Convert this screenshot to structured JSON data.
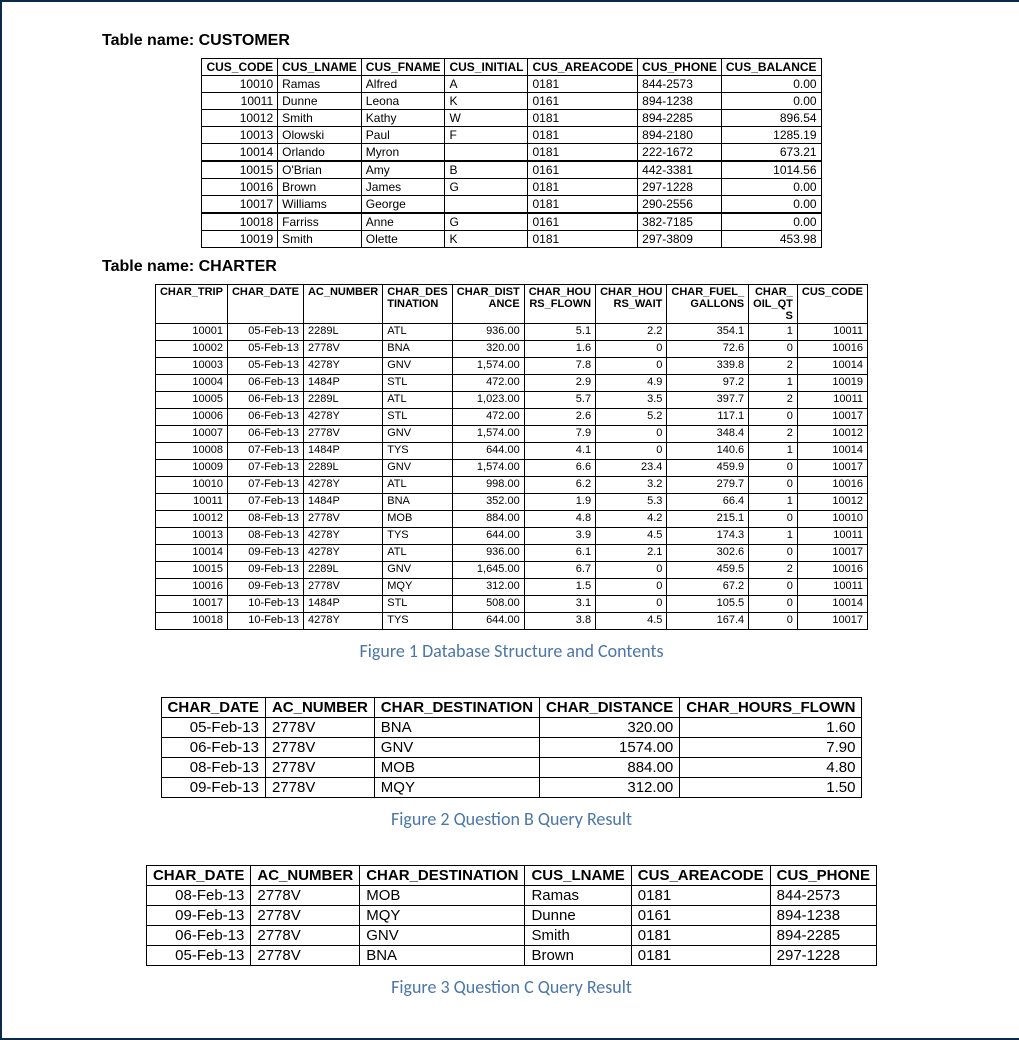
{
  "customer": {
    "title": "Table name: CUSTOMER",
    "columns": [
      "CUS_CODE",
      "CUS_LNAME",
      "CUS_FNAME",
      "CUS_INITIAL",
      "CUS_AREACODE",
      "CUS_PHONE",
      "CUS_BALANCE"
    ],
    "groups": [
      [
        [
          "10010",
          "Ramas",
          "Alfred",
          "A",
          "0181",
          "844-2573",
          "0.00"
        ],
        [
          "10011",
          "Dunne",
          "Leona",
          "K",
          "0161",
          "894-1238",
          "0.00"
        ],
        [
          "10012",
          "Smith",
          "Kathy",
          "W",
          "0181",
          "894-2285",
          "896.54"
        ],
        [
          "10013",
          "Olowski",
          "Paul",
          "F",
          "0181",
          "894-2180",
          "1285.19"
        ],
        [
          "10014",
          "Orlando",
          "Myron",
          "",
          "0181",
          "222-1672",
          "673.21"
        ]
      ],
      [
        [
          "10015",
          "O'Brian",
          "Amy",
          "B",
          "0161",
          "442-3381",
          "1014.56"
        ],
        [
          "10016",
          "Brown",
          "James",
          "G",
          "0181",
          "297-1228",
          "0.00"
        ],
        [
          "10017",
          "Williams",
          "George",
          "",
          "0181",
          "290-2556",
          "0.00"
        ]
      ],
      [
        [
          "10018",
          "Farriss",
          "Anne",
          "G",
          "0161",
          "382-7185",
          "0.00"
        ],
        [
          "10019",
          "Smith",
          "Olette",
          "K",
          "0181",
          "297-3809",
          "453.98"
        ]
      ]
    ],
    "align": [
      "r",
      "l",
      "l",
      "l",
      "l",
      "l",
      "r"
    ]
  },
  "charter": {
    "title": "Table name: CHARTER",
    "columns": [
      "CHAR_TRIP",
      "CHAR_DATE",
      "AC_NUMBER",
      "CHAR_DES\nTINATION",
      "CHAR_DIST\nANCE",
      "CHAR_HOU\nRS_FLOWN",
      "CHAR_HOU\nRS_WAIT",
      "CHAR_FUEL_\nGALLONS",
      "CHAR_\nOIL_QT\nS",
      "CUS_CODE"
    ],
    "rows": [
      [
        "10001",
        "05-Feb-13",
        "2289L",
        "ATL",
        "936.00",
        "5.1",
        "2.2",
        "354.1",
        "1",
        "10011"
      ],
      [
        "10002",
        "05-Feb-13",
        "2778V",
        "BNA",
        "320.00",
        "1.6",
        "0",
        "72.6",
        "0",
        "10016"
      ],
      [
        "10003",
        "05-Feb-13",
        "4278Y",
        "GNV",
        "1,574.00",
        "7.8",
        "0",
        "339.8",
        "2",
        "10014"
      ],
      [
        "10004",
        "06-Feb-13",
        "1484P",
        "STL",
        "472.00",
        "2.9",
        "4.9",
        "97.2",
        "1",
        "10019"
      ],
      [
        "10005",
        "06-Feb-13",
        "2289L",
        "ATL",
        "1,023.00",
        "5.7",
        "3.5",
        "397.7",
        "2",
        "10011"
      ],
      [
        "10006",
        "06-Feb-13",
        "4278Y",
        "STL",
        "472.00",
        "2.6",
        "5.2",
        "117.1",
        "0",
        "10017"
      ],
      [
        "10007",
        "06-Feb-13",
        "2778V",
        "GNV",
        "1,574.00",
        "7.9",
        "0",
        "348.4",
        "2",
        "10012"
      ],
      [
        "10008",
        "07-Feb-13",
        "1484P",
        "TYS",
        "644.00",
        "4.1",
        "0",
        "140.6",
        "1",
        "10014"
      ],
      [
        "10009",
        "07-Feb-13",
        "2289L",
        "GNV",
        "1,574.00",
        "6.6",
        "23.4",
        "459.9",
        "0",
        "10017"
      ],
      [
        "10010",
        "07-Feb-13",
        "4278Y",
        "ATL",
        "998.00",
        "6.2",
        "3.2",
        "279.7",
        "0",
        "10016"
      ],
      [
        "10011",
        "07-Feb-13",
        "1484P",
        "BNA",
        "352.00",
        "1.9",
        "5.3",
        "66.4",
        "1",
        "10012"
      ],
      [
        "10012",
        "08-Feb-13",
        "2778V",
        "MOB",
        "884.00",
        "4.8",
        "4.2",
        "215.1",
        "0",
        "10010"
      ],
      [
        "10013",
        "08-Feb-13",
        "4278Y",
        "TYS",
        "644.00",
        "3.9",
        "4.5",
        "174.3",
        "1",
        "10011"
      ],
      [
        "10014",
        "09-Feb-13",
        "4278Y",
        "ATL",
        "936.00",
        "6.1",
        "2.1",
        "302.6",
        "0",
        "10017"
      ],
      [
        "10015",
        "09-Feb-13",
        "2289L",
        "GNV",
        "1,645.00",
        "6.7",
        "0",
        "459.5",
        "2",
        "10016"
      ],
      [
        "10016",
        "09-Feb-13",
        "2778V",
        "MQY",
        "312.00",
        "1.5",
        "0",
        "67.2",
        "0",
        "10011"
      ],
      [
        "10017",
        "10-Feb-13",
        "1484P",
        "STL",
        "508.00",
        "3.1",
        "0",
        "105.5",
        "0",
        "10014"
      ],
      [
        "10018",
        "10-Feb-13",
        "4278Y",
        "TYS",
        "644.00",
        "3.8",
        "4.5",
        "167.4",
        "0",
        "10017"
      ]
    ],
    "align": [
      "r",
      "r",
      "l",
      "l",
      "r",
      "r",
      "r",
      "r",
      "r",
      "r"
    ]
  },
  "fig1": "Figure 1 Database Structure and Contents",
  "queryB": {
    "columns": [
      "CHAR_DATE",
      "AC_NUMBER",
      "CHAR_DESTINATION",
      "CHAR_DISTANCE",
      "CHAR_HOURS_FLOWN"
    ],
    "rows": [
      [
        "05-Feb-13",
        "2778V",
        "BNA",
        "320.00",
        "1.60"
      ],
      [
        "06-Feb-13",
        "2778V",
        "GNV",
        "1574.00",
        "7.90"
      ],
      [
        "08-Feb-13",
        "2778V",
        "MOB",
        "884.00",
        "4.80"
      ],
      [
        "09-Feb-13",
        "2778V",
        "MQY",
        "312.00",
        "1.50"
      ]
    ],
    "align": [
      "r",
      "l",
      "l",
      "r",
      "r"
    ]
  },
  "fig2": "Figure 2 Question B Query Result",
  "queryC": {
    "columns": [
      "CHAR_DATE",
      "AC_NUMBER",
      "CHAR_DESTINATION",
      "CUS_LNAME",
      "CUS_AREACODE",
      "CUS_PHONE"
    ],
    "rows": [
      [
        "08-Feb-13",
        "2778V",
        "MOB",
        "Ramas",
        "0181",
        "844-2573"
      ],
      [
        "09-Feb-13",
        "2778V",
        "MQY",
        "Dunne",
        "0161",
        "894-1238"
      ],
      [
        "06-Feb-13",
        "2778V",
        "GNV",
        "Smith",
        "0181",
        "894-2285"
      ],
      [
        "05-Feb-13",
        "2778V",
        "BNA",
        "Brown",
        "0181",
        "297-1228"
      ]
    ],
    "align": [
      "r",
      "l",
      "l",
      "l",
      "l",
      "l"
    ]
  },
  "fig3": "Figure 3 Question C Query Result"
}
